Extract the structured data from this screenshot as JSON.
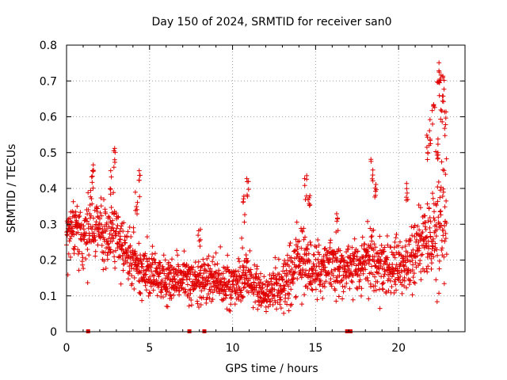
{
  "chart_data": {
    "type": "scatter",
    "title": "Day 150 of 2024, SRMTID for receiver san0",
    "xlabel": "GPS time / hours",
    "ylabel": "SRMTID / TECUs",
    "xlim": [
      0,
      24
    ],
    "ylim": [
      0,
      0.8
    ],
    "xticks": [
      0,
      5,
      10,
      15,
      20
    ],
    "yticks": [
      0,
      0.1,
      0.2,
      0.3,
      0.4,
      0.5,
      0.6,
      0.7,
      0.8
    ],
    "xtick_labels": [
      "0",
      "5",
      "10",
      "15",
      "20"
    ],
    "ytick_labels": [
      "0",
      "0.1",
      "0.2",
      "0.3",
      "0.4",
      "0.5",
      "0.6",
      "0.7",
      "0.8"
    ],
    "grid": true,
    "marker": "+",
    "series_color": "#e00000",
    "zero_value_times": [
      1.3,
      7.4,
      8.3,
      16.9,
      17.0,
      17.1
    ],
    "profile": {
      "x": [
        0,
        0.5,
        1.0,
        1.5,
        2.0,
        2.5,
        3.0,
        3.5,
        4.0,
        4.5,
        5.0,
        5.5,
        6.0,
        6.5,
        7.0,
        7.5,
        8.0,
        8.5,
        9.0,
        9.5,
        10.0,
        10.5,
        11.0,
        11.5,
        12.0,
        12.5,
        13.0,
        13.5,
        14.0,
        14.5,
        15.0,
        15.5,
        16.0,
        16.5,
        17.0,
        17.5,
        18.0,
        18.5,
        19.0,
        19.5,
        20.0,
        20.5,
        21.0,
        21.5,
        22.0,
        22.5,
        22.9
      ],
      "center": [
        0.26,
        0.3,
        0.27,
        0.3,
        0.29,
        0.27,
        0.28,
        0.22,
        0.2,
        0.17,
        0.16,
        0.15,
        0.16,
        0.14,
        0.15,
        0.13,
        0.14,
        0.15,
        0.14,
        0.14,
        0.13,
        0.15,
        0.15,
        0.13,
        0.1,
        0.12,
        0.14,
        0.17,
        0.2,
        0.19,
        0.16,
        0.18,
        0.19,
        0.18,
        0.17,
        0.18,
        0.19,
        0.2,
        0.18,
        0.17,
        0.18,
        0.19,
        0.22,
        0.24,
        0.26,
        0.3,
        0.35
      ],
      "spread": [
        0.05,
        0.05,
        0.06,
        0.06,
        0.05,
        0.06,
        0.06,
        0.05,
        0.05,
        0.04,
        0.04,
        0.04,
        0.04,
        0.04,
        0.04,
        0.04,
        0.04,
        0.04,
        0.04,
        0.04,
        0.04,
        0.04,
        0.04,
        0.04,
        0.03,
        0.04,
        0.04,
        0.05,
        0.05,
        0.05,
        0.04,
        0.04,
        0.05,
        0.04,
        0.04,
        0.05,
        0.05,
        0.06,
        0.05,
        0.05,
        0.05,
        0.05,
        0.06,
        0.07,
        0.09,
        0.12,
        0.14
      ]
    },
    "spikes": [
      {
        "x": 1.6,
        "y": 0.48
      },
      {
        "x": 2.7,
        "y": 0.45
      },
      {
        "x": 2.9,
        "y": 0.52
      },
      {
        "x": 4.4,
        "y": 0.45
      },
      {
        "x": 4.2,
        "y": 0.4
      },
      {
        "x": 8.0,
        "y": 0.29
      },
      {
        "x": 10.9,
        "y": 0.44
      },
      {
        "x": 10.7,
        "y": 0.38
      },
      {
        "x": 14.4,
        "y": 0.44
      },
      {
        "x": 14.6,
        "y": 0.4
      },
      {
        "x": 16.3,
        "y": 0.33
      },
      {
        "x": 18.4,
        "y": 0.49
      },
      {
        "x": 18.6,
        "y": 0.44
      },
      {
        "x": 20.5,
        "y": 0.42
      },
      {
        "x": 21.7,
        "y": 0.55
      },
      {
        "x": 21.9,
        "y": 0.6
      },
      {
        "x": 22.1,
        "y": 0.64
      },
      {
        "x": 22.4,
        "y": 0.7
      },
      {
        "x": 22.5,
        "y": 0.76
      },
      {
        "x": 22.7,
        "y": 0.72
      },
      {
        "x": 22.6,
        "y": 0.66
      },
      {
        "x": 22.8,
        "y": 0.62
      },
      {
        "x": 22.3,
        "y": 0.55
      }
    ]
  }
}
